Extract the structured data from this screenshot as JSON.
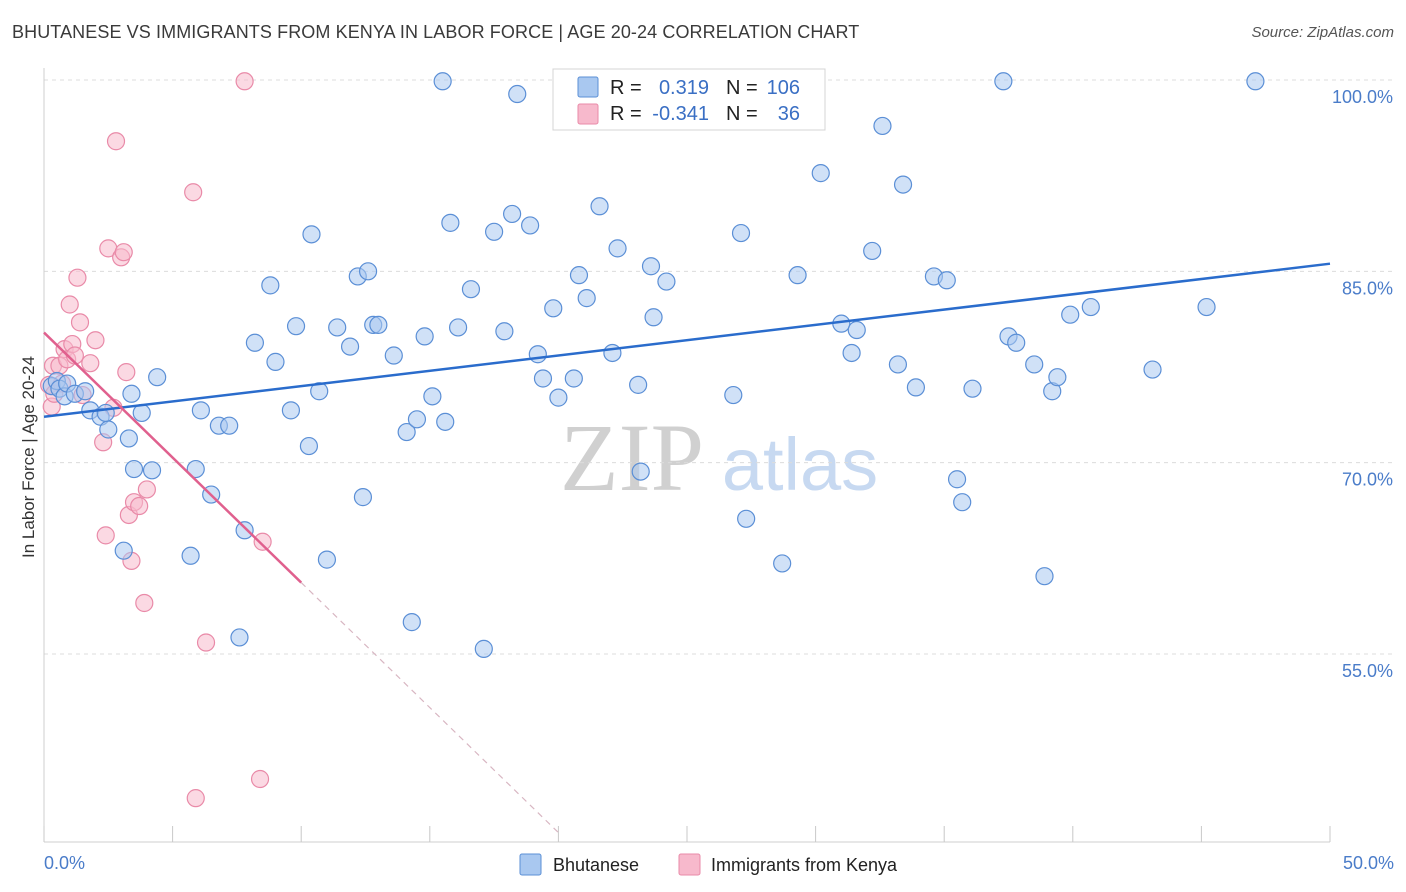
{
  "title": "BHUTANESE VS IMMIGRANTS FROM KENYA IN LABOR FORCE | AGE 20-24 CORRELATION CHART",
  "source": "Source: ZipAtlas.com",
  "watermark": {
    "zip": "ZIP",
    "atlas": "atlas"
  },
  "colors": {
    "blue_fill": "#a9c8f0",
    "blue_stroke": "#5b8fd6",
    "blue_line": "#2a6ccc",
    "pink_fill": "#f7b9cc",
    "pink_stroke": "#e98aa8",
    "pink_line": "#e0608e",
    "grid": "#dcdcdc",
    "tick_text": "#4a7cc9"
  },
  "legend": {
    "rows": [
      {
        "r_label": "R =",
        "r_value": "0.319",
        "n_label": "N =",
        "n_value": "106"
      },
      {
        "r_label": "R =",
        "r_value": "-0.341",
        "n_label": "N =",
        "n_value": "36"
      }
    ]
  },
  "chart_data": {
    "type": "scatter",
    "title": "BHUTANESE VS IMMIGRANTS FROM KENYA IN LABOR FORCE | AGE 20-24 CORRELATION CHART",
    "xlabel": "",
    "ylabel": "In Labor Force | Age 20-24",
    "xlim": [
      0,
      50
    ],
    "ylim": [
      40,
      101
    ],
    "x_tick_labels": [
      "0.0%",
      "50.0%"
    ],
    "y_ticks": [
      55,
      70,
      85,
      100
    ],
    "y_tick_labels": [
      "55.0%",
      "70.0%",
      "85.0%",
      "100.0%"
    ],
    "grid": "horizontal dashed",
    "legend_position": "bottom-center",
    "series": [
      {
        "name": "Bhutanese",
        "color": "#a9c8f0",
        "r": 0.319,
        "n": 106,
        "trend": {
          "x": [
            0,
            50
          ],
          "y": [
            73.6,
            85.6
          ]
        },
        "points": [
          [
            0.3,
            76.0
          ],
          [
            0.5,
            76.4
          ],
          [
            0.6,
            75.8
          ],
          [
            0.8,
            75.2
          ],
          [
            0.9,
            76.2
          ],
          [
            1.2,
            75.4
          ],
          [
            1.6,
            75.6
          ],
          [
            1.8,
            74.1
          ],
          [
            2.2,
            73.6
          ],
          [
            2.5,
            72.6
          ],
          [
            2.4,
            73.9
          ],
          [
            3.1,
            63.1
          ],
          [
            3.3,
            71.9
          ],
          [
            3.4,
            75.4
          ],
          [
            3.5,
            69.5
          ],
          [
            3.8,
            73.9
          ],
          [
            4.2,
            69.4
          ],
          [
            4.4,
            76.7
          ],
          [
            5.7,
            62.7
          ],
          [
            5.9,
            69.5
          ],
          [
            6.1,
            74.1
          ],
          [
            6.5,
            67.5
          ],
          [
            6.8,
            72.9
          ],
          [
            7.2,
            72.9
          ],
          [
            7.6,
            56.3
          ],
          [
            7.8,
            64.7
          ],
          [
            8.2,
            79.4
          ],
          [
            8.8,
            83.9
          ],
          [
            9.0,
            77.9
          ],
          [
            9.6,
            74.1
          ],
          [
            9.8,
            80.7
          ],
          [
            10.3,
            71.3
          ],
          [
            10.4,
            87.9
          ],
          [
            10.7,
            75.6
          ],
          [
            11.0,
            62.4
          ],
          [
            11.4,
            80.6
          ],
          [
            11.9,
            79.1
          ],
          [
            12.2,
            84.6
          ],
          [
            12.4,
            67.3
          ],
          [
            12.6,
            85.0
          ],
          [
            12.8,
            80.8
          ],
          [
            13.0,
            80.8
          ],
          [
            13.6,
            78.4
          ],
          [
            14.1,
            72.4
          ],
          [
            14.3,
            57.5
          ],
          [
            14.5,
            73.4
          ],
          [
            14.8,
            79.9
          ],
          [
            15.1,
            75.2
          ],
          [
            15.5,
            99.9
          ],
          [
            15.6,
            73.2
          ],
          [
            15.8,
            88.8
          ],
          [
            16.1,
            80.6
          ],
          [
            16.6,
            83.6
          ],
          [
            17.1,
            55.4
          ],
          [
            17.5,
            88.1
          ],
          [
            17.9,
            80.3
          ],
          [
            18.2,
            89.5
          ],
          [
            18.4,
            98.9
          ],
          [
            18.9,
            88.6
          ],
          [
            19.2,
            78.5
          ],
          [
            19.4,
            76.6
          ],
          [
            19.8,
            82.1
          ],
          [
            20.0,
            75.1
          ],
          [
            20.6,
            76.6
          ],
          [
            20.8,
            84.7
          ],
          [
            21.1,
            82.9
          ],
          [
            21.6,
            90.1
          ],
          [
            22.1,
            78.6
          ],
          [
            22.3,
            86.8
          ],
          [
            23.1,
            76.1
          ],
          [
            23.2,
            69.3
          ],
          [
            23.6,
            85.4
          ],
          [
            23.7,
            81.4
          ],
          [
            24.2,
            84.2
          ],
          [
            26.0,
            98.1
          ],
          [
            26.8,
            75.3
          ],
          [
            27.1,
            88.0
          ],
          [
            27.3,
            65.6
          ],
          [
            28.7,
            62.1
          ],
          [
            29.3,
            84.7
          ],
          [
            30.2,
            92.7
          ],
          [
            31.0,
            80.9
          ],
          [
            31.4,
            78.6
          ],
          [
            31.6,
            80.4
          ],
          [
            32.2,
            86.6
          ],
          [
            32.6,
            96.4
          ],
          [
            33.2,
            77.7
          ],
          [
            33.4,
            91.8
          ],
          [
            33.9,
            75.9
          ],
          [
            34.6,
            84.6
          ],
          [
            35.1,
            84.3
          ],
          [
            35.5,
            68.7
          ],
          [
            35.7,
            66.9
          ],
          [
            36.1,
            75.8
          ],
          [
            37.3,
            99.9
          ],
          [
            37.5,
            79.9
          ],
          [
            37.8,
            79.4
          ],
          [
            38.5,
            77.7
          ],
          [
            38.9,
            61.1
          ],
          [
            39.2,
            75.6
          ],
          [
            39.4,
            76.7
          ],
          [
            39.9,
            81.6
          ],
          [
            40.7,
            82.2
          ],
          [
            43.1,
            77.3
          ],
          [
            45.2,
            82.2
          ],
          [
            47.1,
            99.9
          ]
        ]
      },
      {
        "name": "Immigrants from Kenya",
        "color": "#f7b9cc",
        "r": -0.341,
        "n": 36,
        "trend": {
          "x": [
            0,
            10
          ],
          "y": [
            80.2,
            60.6
          ]
        },
        "trend_extension": {
          "x": [
            10,
            20
          ],
          "y": [
            60.6,
            41.0
          ]
        },
        "points": [
          [
            0.2,
            76.1
          ],
          [
            0.3,
            74.4
          ],
          [
            0.35,
            77.6
          ],
          [
            0.4,
            75.4
          ],
          [
            0.6,
            77.6
          ],
          [
            0.7,
            76.2
          ],
          [
            0.8,
            78.9
          ],
          [
            0.9,
            78.1
          ],
          [
            1.0,
            82.4
          ],
          [
            1.1,
            79.3
          ],
          [
            1.2,
            78.4
          ],
          [
            1.3,
            84.5
          ],
          [
            1.4,
            81.0
          ],
          [
            1.5,
            75.3
          ],
          [
            1.8,
            77.8
          ],
          [
            2.0,
            79.6
          ],
          [
            2.3,
            71.6
          ],
          [
            2.4,
            64.3
          ],
          [
            2.5,
            86.8
          ],
          [
            2.7,
            74.3
          ],
          [
            2.8,
            95.2
          ],
          [
            3.0,
            86.1
          ],
          [
            3.1,
            86.5
          ],
          [
            3.2,
            77.1
          ],
          [
            3.3,
            65.9
          ],
          [
            3.4,
            62.3
          ],
          [
            3.5,
            66.9
          ],
          [
            3.7,
            66.6
          ],
          [
            3.9,
            59.0
          ],
          [
            4.0,
            67.9
          ],
          [
            5.8,
            91.2
          ],
          [
            5.9,
            43.7
          ],
          [
            6.3,
            55.9
          ],
          [
            7.8,
            99.9
          ],
          [
            8.4,
            45.2
          ],
          [
            8.5,
            63.8
          ]
        ]
      }
    ]
  },
  "bottom_legend": [
    "Bhutanese",
    "Immigrants from Kenya"
  ]
}
